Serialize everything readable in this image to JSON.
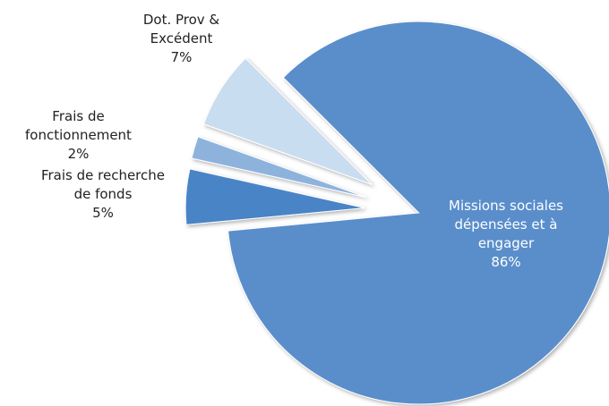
{
  "chart_data": {
    "type": "pie",
    "categories": [
      "Missions sociales dépensées et à engager",
      "Frais de recherche de fonds",
      "Frais de fonctionnement",
      "Dot. Prov & Excédent"
    ],
    "values": [
      86,
      5,
      2,
      7
    ],
    "value_labels": [
      "86%",
      "5%",
      "2%",
      "7%"
    ],
    "colors": [
      "#5a8ecb",
      "#4a84c6",
      "#8db3dd",
      "#c9ddf1"
    ]
  }
}
